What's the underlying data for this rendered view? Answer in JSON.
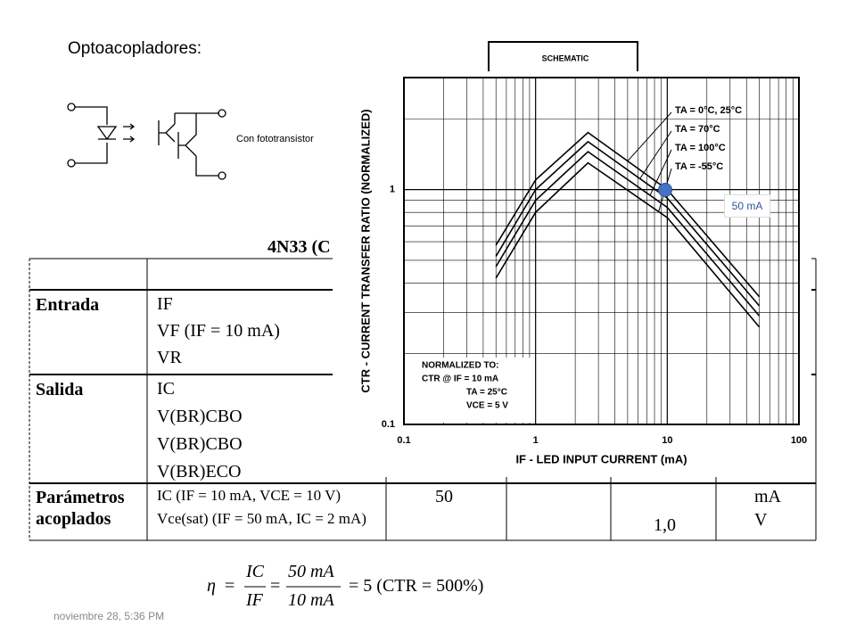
{
  "slide": {
    "title": "Optoacopladores:",
    "caption": "Con fototransistor",
    "schematic_label": "SCHEMATIC",
    "table_title": "4N33 (C",
    "footer": "noviembre 28, 5:36 PM",
    "marker_label": "50 mA"
  },
  "table": {
    "rows": [
      {
        "group": "Entrada",
        "params": [
          "IF",
          "VF (IF = 10 mA)",
          "VR"
        ]
      },
      {
        "group": "Salida",
        "params": [
          "IC",
          "V(BR)CBO",
          "V(BR)CBO",
          "V(BR)ECO"
        ]
      },
      {
        "group": "Parámetros acoplados",
        "params": [
          "IC (IF = 10 mA, VCE = 10 V)",
          "Vce(sat) (IF = 50 mA, IC = 2 mA)"
        ],
        "typ": "50",
        "max": "1,0",
        "units": [
          "mA",
          "V"
        ]
      }
    ]
  },
  "equation": {
    "lhs": "η",
    "eq": "=",
    "f1_num": "IC",
    "f1_den": "IF",
    "f2_num": "50 mA",
    "f2_den": "10 mA",
    "result": "= 5 (CTR = 500%)"
  },
  "chart_data": {
    "type": "line",
    "xlabel": "IF - LED INPUT CURRENT (mA)",
    "ylabel": "CTR - CURRENT TRANSFER RATIO (NORMALIZED)",
    "x": [
      0.5,
      1,
      2.5,
      10,
      50
    ],
    "xlim": [
      0.1,
      100
    ],
    "ylim": [
      0.1,
      3
    ],
    "log_x": true,
    "log_y": true,
    "grid": true,
    "xticks": [
      0.1,
      1,
      10,
      100
    ],
    "yticks": [
      0.1,
      1
    ],
    "note": [
      "NORMALIZED TO:",
      "CTR @ IF = 10 mA",
      "TA = 25°C",
      "VCE = 5 V"
    ],
    "series": [
      {
        "name": "TA = 0°C, 25°C",
        "color": "#000000",
        "values": [
          0.58,
          1.1,
          1.75,
          1.0,
          0.35
        ]
      },
      {
        "name": "TA = 70°C",
        "color": "#000000",
        "values": [
          0.52,
          1.0,
          1.6,
          0.92,
          0.32
        ]
      },
      {
        "name": "TA = 100°C",
        "color": "#000000",
        "values": [
          0.47,
          0.9,
          1.45,
          0.84,
          0.29
        ]
      },
      {
        "name": "TA = -55°C",
        "color": "#000000",
        "values": [
          0.42,
          0.8,
          1.3,
          0.76,
          0.26
        ]
      }
    ]
  }
}
